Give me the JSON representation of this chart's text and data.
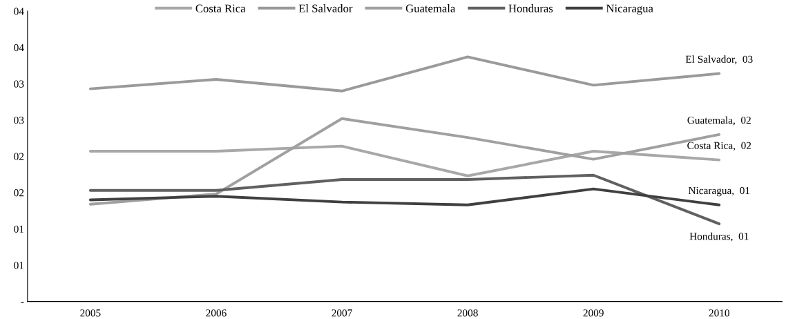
{
  "chart_data": {
    "type": "line",
    "categories": [
      "2005",
      "2006",
      "2007",
      "2008",
      "2009",
      "2010"
    ],
    "series": [
      {
        "name": "Costa Rica",
        "color": "#a8a8a8",
        "values": [
          2.07,
          2.07,
          2.14,
          1.73,
          2.07,
          1.95
        ]
      },
      {
        "name": "El Salvador",
        "color": "#9a9a9a",
        "values": [
          2.93,
          3.06,
          2.9,
          3.37,
          2.98,
          3.14
        ]
      },
      {
        "name": "Guatemala",
        "color": "#a0a0a0",
        "values": [
          1.34,
          1.48,
          2.52,
          2.26,
          1.96,
          2.3
        ]
      },
      {
        "name": "Honduras",
        "color": "#606060",
        "values": [
          1.53,
          1.53,
          1.68,
          1.68,
          1.74,
          1.07
        ]
      },
      {
        "name": "Nicaragua",
        "color": "#404040",
        "values": [
          1.4,
          1.45,
          1.37,
          1.33,
          1.55,
          1.33
        ]
      }
    ],
    "ylim": [
      0,
      4
    ],
    "yticks": [
      {
        "value": 0,
        "label": "-"
      },
      {
        "value": 0.5,
        "label": "01"
      },
      {
        "value": 1,
        "label": "01"
      },
      {
        "value": 1.5,
        "label": "02"
      },
      {
        "value": 2,
        "label": "02"
      },
      {
        "value": 2.5,
        "label": "03"
      },
      {
        "value": 3,
        "label": "03"
      },
      {
        "value": 3.5,
        "label": "04"
      },
      {
        "value": 4,
        "label": "04"
      }
    ],
    "annotations": [
      {
        "text": "El Salvador,  03",
        "x": "2010",
        "y": 3.14
      },
      {
        "text": "Guatemala,  02",
        "x": "2010",
        "y": 2.3
      },
      {
        "text": "Costa Rica,  02",
        "x": "2010",
        "y": 1.95
      },
      {
        "text": "Nicaragua,  01",
        "x": "2010",
        "y": 1.33
      },
      {
        "text": "Honduras,  01",
        "x": "2010",
        "y": 1.07
      }
    ],
    "grid": false,
    "legend": "top",
    "marker": "none",
    "line_style": "solid"
  }
}
